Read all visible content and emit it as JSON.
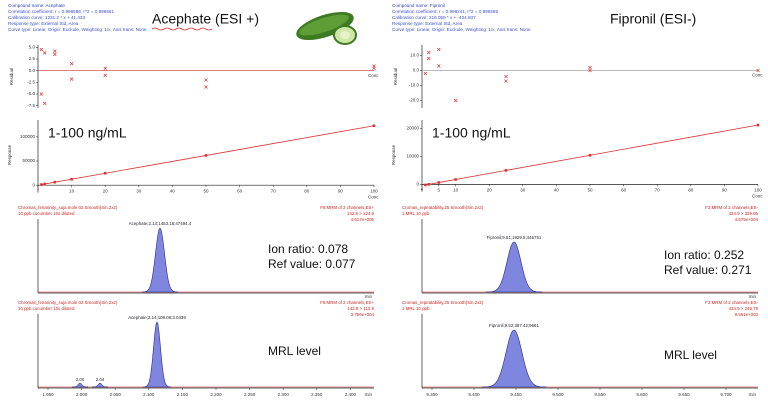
{
  "panels": [
    {
      "info": [
        "Compound name: Acephate",
        "Correlation coefficient: r = 0.998586, r^2 = 0.996561",
        "Calibration curve: 1231.2 * x + 41.433",
        "Response type: External Std, Area",
        "Curve type: Linear, Origin: Exclude, Weighting: 1/x, Axis trans: None"
      ],
      "title": "Acephate (ESI +)",
      "residual": {
        "ylabel": "Residual",
        "xlabel": "Conc",
        "ylim": [
          -8,
          5.5
        ],
        "xlim": [
          0,
          100
        ],
        "yticks": [
          {
            "value": 5,
            "label": "5.0"
          },
          {
            "value": 2.5,
            "label": "2.5"
          },
          {
            "value": 0,
            "label": "0.0"
          },
          {
            "value": -2.5,
            "label": "-2.5"
          },
          {
            "value": -5,
            "label": "-5.0"
          },
          {
            "value": -7.5,
            "label": "-7.5"
          }
        ],
        "x": [
          1,
          1,
          2,
          2,
          5,
          5,
          10,
          10,
          20,
          20,
          50,
          50,
          100,
          100
        ],
        "y": [
          4.5,
          -5,
          3.8,
          -7,
          3.5,
          4.2,
          1.5,
          -1.8,
          0.5,
          -1,
          -2,
          -3.5,
          1,
          0.5
        ]
      },
      "calibration": {
        "label": "1-100 ng/mL",
        "ylabel": "Response",
        "xlabel": "Conc",
        "ylim": [
          -10000,
          135000
        ],
        "xlim": [
          0,
          100
        ],
        "yticks": [
          0,
          50000,
          100000
        ],
        "xticks": [
          0,
          10,
          20,
          30,
          40,
          50,
          60,
          70,
          80,
          90,
          100
        ],
        "x": [
          1,
          2,
          5,
          10,
          20,
          50,
          100
        ],
        "y": [
          1270,
          2500,
          6200,
          12400,
          24700,
          61600,
          123100
        ]
      },
      "chromatograms": [
        {
          "header": [
            "Chromas_fenarinity_suja mole 02 Smooth(Sin,2x2)",
            "10 ppb cucumber 10x diluted"
          ],
          "channel": [
            "F6:MRM of 2 channels,ES+",
            "142.8 > 124.9",
            "4.617e+005"
          ],
          "peak": "Acephate;2.14;1453.16;47494.4",
          "notes": [
            "Ion ratio: 0.078",
            "Ref value: 0.077"
          ]
        },
        {
          "header": [
            "Chromas_fenarinity_suja mole 02 Smooth(Sin,2x2)",
            "10 ppb cucumber 10x diluted"
          ],
          "channel": [
            "F6:MRM of 2 channels,ES+",
            "142.8 > 112.9",
            "3.756e+004"
          ],
          "peak": "Acephate;2.14;109.06;3.0339",
          "notes": [
            "MRL level"
          ],
          "minor": [
            "2.00",
            "2.04"
          ]
        }
      ],
      "time_ticks": [
        "1.950",
        "2.000",
        "2.050",
        "2.100",
        "2.150",
        "2.200",
        "2.250",
        "2.300",
        "2.350",
        "2.400"
      ],
      "time_label": "min"
    },
    {
      "info": [
        "Compound name: Fipronil",
        "Correlation coefficient: r = 0.998241, r^2 = 0.996585",
        "Calibration curve: 216.059 * x + -404.937",
        "Response type: External Std, Area",
        "Curve type: Linear, Origin: Exclude, Weighting: 1/x, Axis trans: None"
      ],
      "title": "Fipronil (ESI-)",
      "residual": {
        "ylabel": "Residual",
        "xlabel": "Conc",
        "ylim": [
          -25,
          17
        ],
        "xlim": [
          0,
          100
        ],
        "yticks": [
          {
            "value": 10,
            "label": "10.0"
          },
          {
            "value": 0,
            "label": "0.0"
          },
          {
            "value": -10,
            "label": "-10.0"
          },
          {
            "value": -20,
            "label": "-20.0"
          }
        ],
        "x": [
          1,
          2,
          2,
          5,
          5,
          10,
          25,
          25,
          50,
          50,
          100
        ],
        "y": [
          -2,
          8,
          12,
          14,
          3,
          -20,
          -4,
          -7,
          0,
          2,
          0
        ]
      },
      "calibration": {
        "label": "1-100 ng/mL",
        "ylabel": "Response",
        "xlabel": "Conc",
        "ylim": [
          -2000,
          23000
        ],
        "xlim": [
          0,
          100
        ],
        "yticks": [
          0,
          10000,
          20000
        ],
        "xticks": [
          0,
          5,
          10,
          20,
          30,
          40,
          50,
          60,
          70,
          80,
          90,
          100
        ],
        "x": [
          1,
          2,
          5,
          10,
          25,
          50,
          100
        ],
        "y": [
          -190,
          28,
          676,
          1756,
          5000,
          10400,
          21200
        ]
      },
      "chromatograms": [
        {
          "header": [
            "Cromas_repeatability,25 Smooth(Sin,2x2)",
            "1 MRL 10 ppb"
          ],
          "channel": [
            "F2:MRM of 2 channels,ES-",
            "434.9 > 329.95",
            "4.575e+004"
          ],
          "peak": "Fipronil;9.51;1929.5;446751",
          "notes": [
            "Ion ratio: 0.252",
            "Ref value: 0.271"
          ]
        },
        {
          "header": [
            "Cromas_repeatability,25 Smooth(Sin,2x2)",
            "1 MRL 10 ppb"
          ],
          "channel": [
            "F2:MRM of 2 channels,ES-",
            "434.9 > 249.79",
            "9.551e+003"
          ],
          "peak": "Fipronil;9.52;387.42;9661",
          "notes": [
            "MRL level"
          ]
        }
      ],
      "time_ticks": [
        "9.350",
        "9.400",
        "9.450",
        "9.500",
        "9.550",
        "9.600",
        "9.650",
        "9.700"
      ],
      "time_label": "min"
    }
  ]
}
